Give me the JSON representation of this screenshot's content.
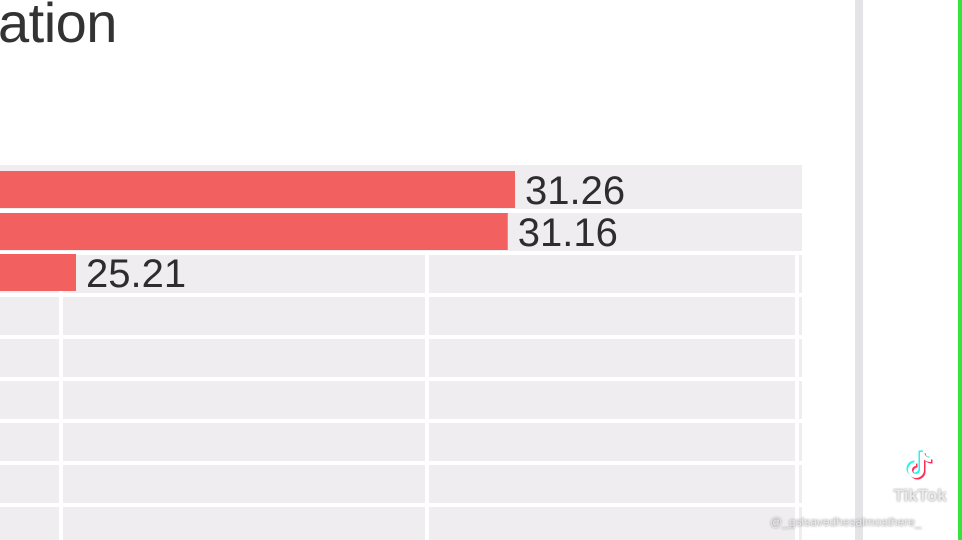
{
  "title": "ation",
  "chart_data": {
    "type": "bar",
    "orientation": "horizontal",
    "values": [
      31.26,
      31.16,
      25.21
    ],
    "data_labels": [
      "31.26",
      "31.16",
      "25.21"
    ],
    "bar_color": "#f36060",
    "plot_background": "#efedf0",
    "grid": true
  },
  "watermark": {
    "brand": "TikTok",
    "username": "@_gslsavedhesalmosthere_",
    "icon": "tiktok-logo-icon"
  },
  "colors": {
    "accent_green": "#37e23d",
    "divider": "#e4e3e6"
  }
}
